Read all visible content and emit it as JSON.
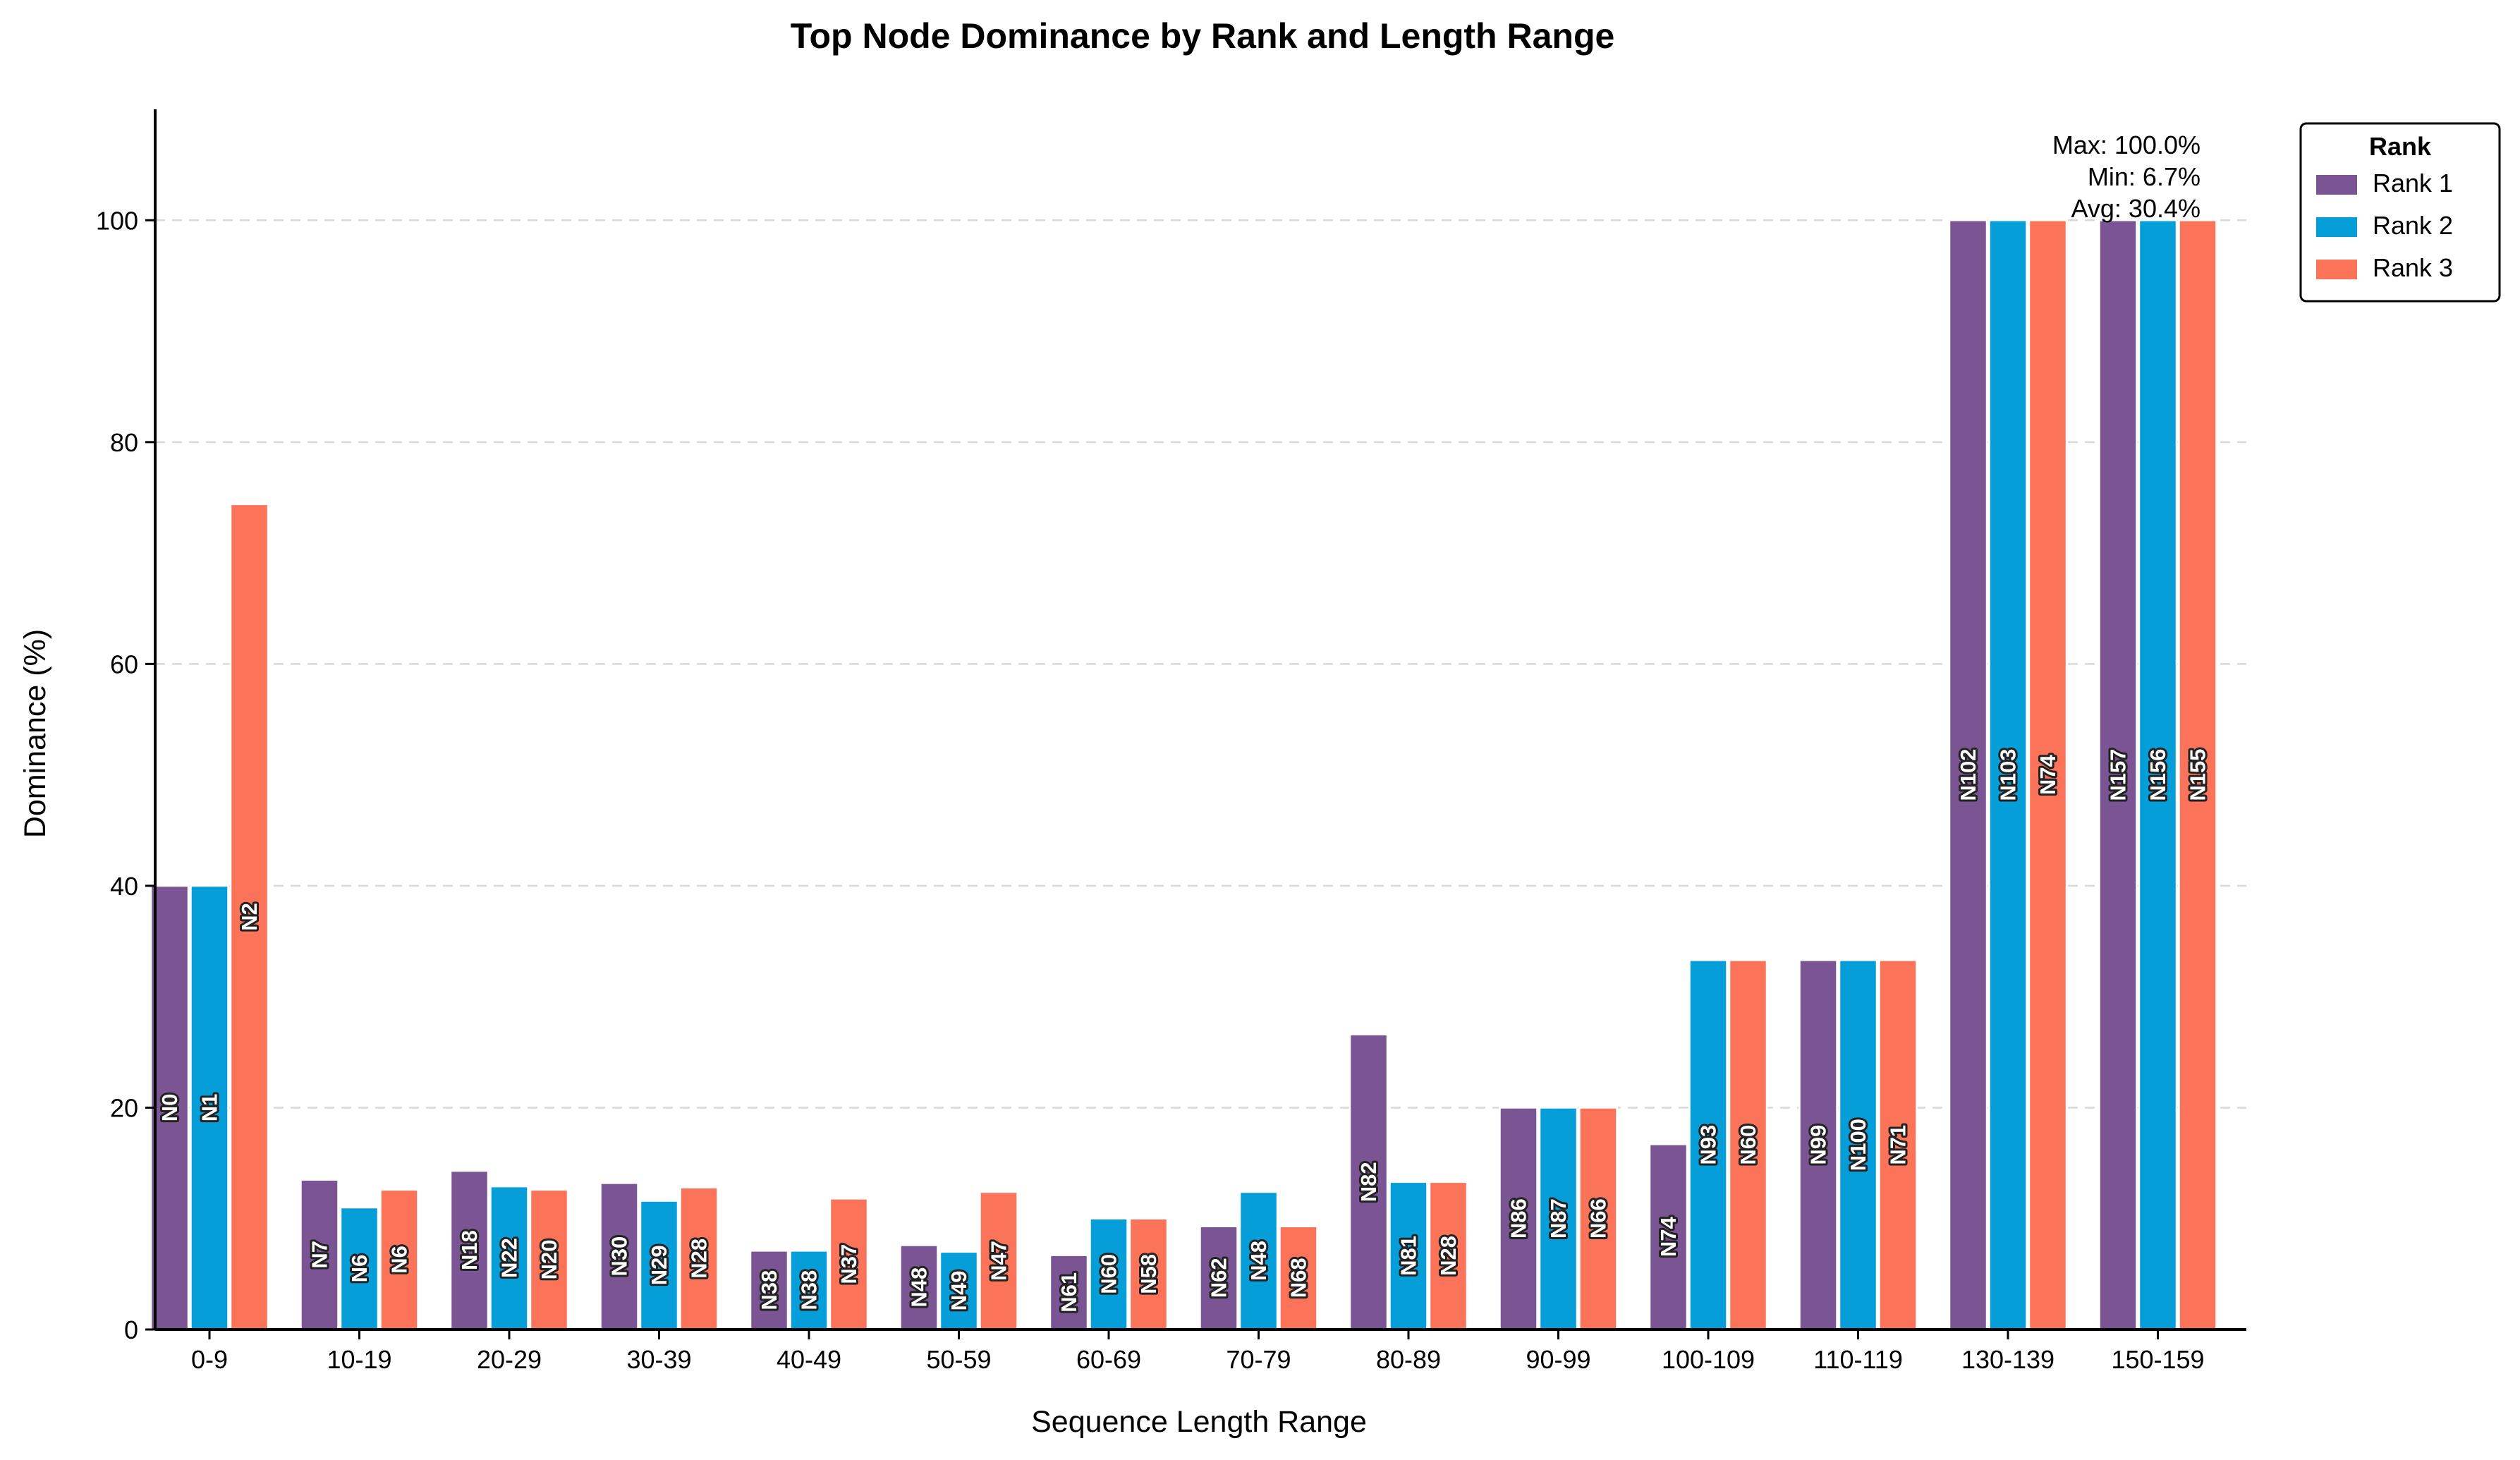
{
  "chart_data": {
    "type": "bar",
    "title": "Top Node Dominance by Rank and Length Range",
    "xlabel": "Sequence Length Range",
    "ylabel": "Dominance (%)",
    "ylim": [
      0,
      110
    ],
    "yticks": [
      0,
      20,
      40,
      60,
      80,
      100
    ],
    "grid": "horizontal dashed",
    "legend": {
      "title": "Rank",
      "placement": "outside-top-right"
    },
    "categories": [
      "0-9",
      "10-19",
      "20-29",
      "30-39",
      "40-49",
      "50-59",
      "60-69",
      "70-79",
      "80-89",
      "90-99",
      "100-109",
      "110-119",
      "130-139",
      "150-159"
    ],
    "series": [
      {
        "name": "Rank 1",
        "color": "#7B5493",
        "values": [
          40,
          13.5,
          14.3,
          13.2,
          7.1,
          7.6,
          6.7,
          9.3,
          26.6,
          20,
          16.7,
          33.3,
          100,
          100
        ],
        "labels": [
          "N0",
          "N7",
          "N18",
          "N30",
          "N38",
          "N48",
          "N61",
          "N62",
          "N82",
          "N86",
          "N74",
          "N99",
          "N102",
          "N157"
        ]
      },
      {
        "name": "Rank 2",
        "color": "#069ED8",
        "values": [
          40,
          11.0,
          12.9,
          11.6,
          7.1,
          7.0,
          10.0,
          12.4,
          13.3,
          20,
          33.3,
          33.3,
          100,
          100
        ],
        "labels": [
          "N1",
          "N6",
          "N22",
          "N29",
          "N38",
          "N49",
          "N60",
          "N48",
          "N81",
          "N87",
          "N93",
          "N100",
          "N103",
          "N156"
        ]
      },
      {
        "name": "Rank 3",
        "color": "#FB7359",
        "values": [
          74.4,
          12.6,
          12.6,
          12.8,
          11.8,
          12.4,
          10.0,
          9.3,
          13.3,
          20,
          33.3,
          33.3,
          100,
          100
        ],
        "labels": [
          "N2",
          "N6",
          "N20",
          "N28",
          "N37",
          "N47",
          "N58",
          "N68",
          "N28",
          "N66",
          "N60",
          "N71",
          "N74",
          "N155"
        ]
      }
    ],
    "annotation": [
      "Max: 100.0%",
      "Min: 6.7%",
      "Avg: 30.4%"
    ]
  }
}
